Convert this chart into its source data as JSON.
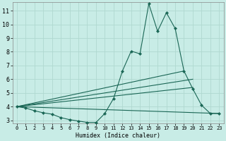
{
  "xlabel": "Humidex (Indice chaleur)",
  "bg_color": "#c8ece6",
  "grid_color": "#b0d8d0",
  "line_color": "#1a6655",
  "xlim": [
    -0.5,
    23.5
  ],
  "ylim": [
    2.8,
    11.6
  ],
  "yticks": [
    3,
    4,
    5,
    6,
    7,
    8,
    9,
    10,
    11
  ],
  "xticks": [
    0,
    1,
    2,
    3,
    4,
    5,
    6,
    7,
    8,
    9,
    10,
    11,
    12,
    13,
    14,
    15,
    16,
    17,
    18,
    19,
    20,
    21,
    22,
    23
  ],
  "main_x": [
    0,
    1,
    2,
    3,
    4,
    5,
    6,
    7,
    8,
    9,
    10,
    11,
    12,
    13,
    14,
    15,
    16,
    17,
    18,
    19,
    20,
    21,
    22,
    23
  ],
  "main_y": [
    4.0,
    3.9,
    3.7,
    3.55,
    3.45,
    3.2,
    3.05,
    2.95,
    2.85,
    2.85,
    3.5,
    4.6,
    6.6,
    8.05,
    7.85,
    11.5,
    9.5,
    10.85,
    9.7,
    6.6,
    5.3,
    4.1,
    3.5,
    3.5
  ],
  "diag_lines": [
    {
      "x": [
        0,
        20
      ],
      "y": [
        4.0,
        5.4
      ]
    },
    {
      "x": [
        0,
        20
      ],
      "y": [
        4.0,
        6.0
      ]
    },
    {
      "x": [
        0,
        19
      ],
      "y": [
        4.0,
        6.6
      ]
    },
    {
      "x": [
        0,
        23
      ],
      "y": [
        4.0,
        3.5
      ]
    }
  ]
}
